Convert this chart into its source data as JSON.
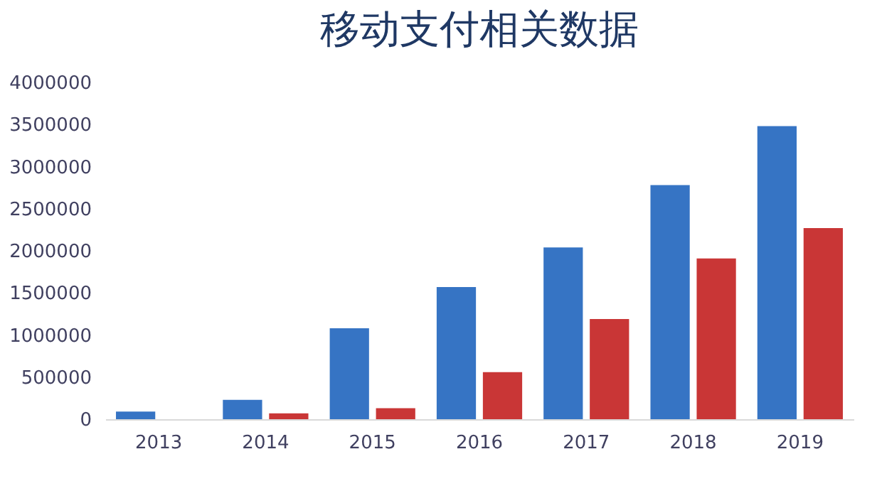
{
  "chart_data": {
    "type": "bar",
    "title": "移动支付相关数据",
    "categories": [
      "2013",
      "2014",
      "2015",
      "2016",
      "2017",
      "2018",
      "2019"
    ],
    "series": [
      {
        "color": "#3674c4",
        "values": [
          90000,
          230000,
          1080000,
          1570000,
          2040000,
          2780000,
          3480000
        ]
      },
      {
        "color": "#c93636",
        "values": [
          0,
          70000,
          130000,
          560000,
          1190000,
          1910000,
          2270000
        ]
      }
    ],
    "ylim": [
      0,
      4000000
    ],
    "yticks": [
      0,
      500000,
      1000000,
      1500000,
      2000000,
      2500000,
      3000000,
      3500000,
      4000000
    ],
    "grid": false,
    "legend": false
  }
}
